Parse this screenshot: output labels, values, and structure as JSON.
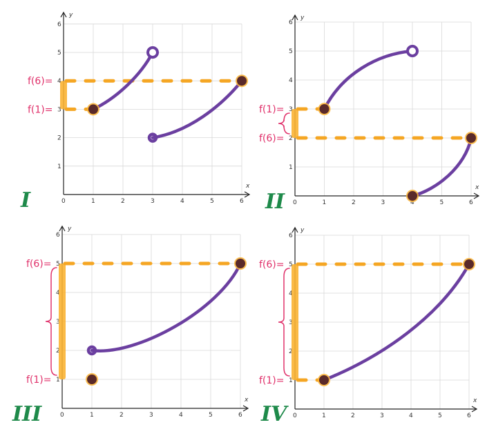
{
  "panels": [
    {
      "id": "I",
      "roman": "I",
      "curves": [
        {
          "from": [
            1,
            3
          ],
          "to": [
            3,
            5
          ],
          "ctrl": [
            [
              1.8,
              3.4
            ],
            [
              2.6,
              4.2
            ]
          ],
          "start": "closed",
          "end": "open"
        },
        {
          "from": [
            3,
            2
          ],
          "to": [
            6,
            4
          ],
          "ctrl": [
            [
              4.2,
              2.2
            ],
            [
              5.3,
              3.1
            ]
          ],
          "start": "hook",
          "end": "closed"
        }
      ],
      "dashed_levels": [
        3,
        4
      ],
      "dashed_extent": [
        [
          0,
          1
        ],
        [
          0,
          6
        ]
      ],
      "bar": [
        3,
        4
      ],
      "labels": [
        {
          "text": "f(6)=",
          "value": 4
        },
        {
          "text": "f(1)=",
          "value": 3
        }
      ],
      "brace": false
    },
    {
      "id": "II",
      "roman": "II",
      "curves": [
        {
          "from": [
            1,
            3
          ],
          "to": [
            4,
            5
          ],
          "ctrl": [
            [
              1.6,
              4.2
            ],
            [
              2.8,
              4.9
            ]
          ],
          "start": "closed",
          "end": "open"
        },
        {
          "from": [
            4,
            0
          ],
          "to": [
            6,
            2
          ],
          "ctrl": [
            [
              4.8,
              0.2
            ],
            [
              5.8,
              1.0
            ]
          ],
          "start": "closed",
          "end": "closed"
        }
      ],
      "dashed_levels": [
        3,
        2
      ],
      "dashed_extent": [
        [
          0,
          1
        ],
        [
          0,
          6
        ]
      ],
      "bar": [
        2,
        3
      ],
      "labels": [
        {
          "text": "f(1)=",
          "value": 3
        },
        {
          "text": "f(6)=",
          "value": 2
        }
      ],
      "brace": true
    },
    {
      "id": "III",
      "roman": "III",
      "curves": [
        {
          "from": [
            1,
            2
          ],
          "to": [
            6,
            5
          ],
          "ctrl": [
            [
              2.5,
              1.8
            ],
            [
              5.3,
              3.4
            ]
          ],
          "start": "hook",
          "end": "closed"
        }
      ],
      "dots": [
        [
          1,
          1
        ]
      ],
      "dashed_levels": [
        5
      ],
      "dashed_extent": [
        [
          0,
          6
        ]
      ],
      "bar": [
        1,
        5
      ],
      "labels": [
        {
          "text": "f(6)=",
          "value": 5
        },
        {
          "text": "f(1)=",
          "value": 1
        }
      ],
      "brace": true
    },
    {
      "id": "IV",
      "roman": "IV",
      "curves": [
        {
          "from": [
            1,
            1
          ],
          "to": [
            6,
            5
          ],
          "ctrl": [
            [
              3.0,
              1.8
            ],
            [
              5.0,
              3.2
            ]
          ],
          "start": "closed",
          "end": "closed"
        }
      ],
      "dashed_levels": [
        5,
        1
      ],
      "dashed_extent": [
        [
          0,
          6
        ],
        [
          0,
          1
        ]
      ],
      "bar": [
        1,
        5
      ],
      "labels": [
        {
          "text": "f(6)=",
          "value": 5
        },
        {
          "text": "f(1)=",
          "value": 1
        }
      ],
      "brace": true
    }
  ],
  "axis": {
    "x_label": "x",
    "y_label": "y",
    "x_ticks": [
      "0",
      "1",
      "2",
      "3",
      "4",
      "5",
      "6"
    ],
    "y_ticks": [
      "1",
      "2",
      "3",
      "4",
      "5",
      "6"
    ]
  },
  "colors": {
    "curve": "#6b3fa0",
    "dashed": "#f5a623",
    "highlight": "#f9b233",
    "point": "#5a2a2a",
    "annotation": "#e0306a",
    "roman": "#1e8a4a"
  }
}
